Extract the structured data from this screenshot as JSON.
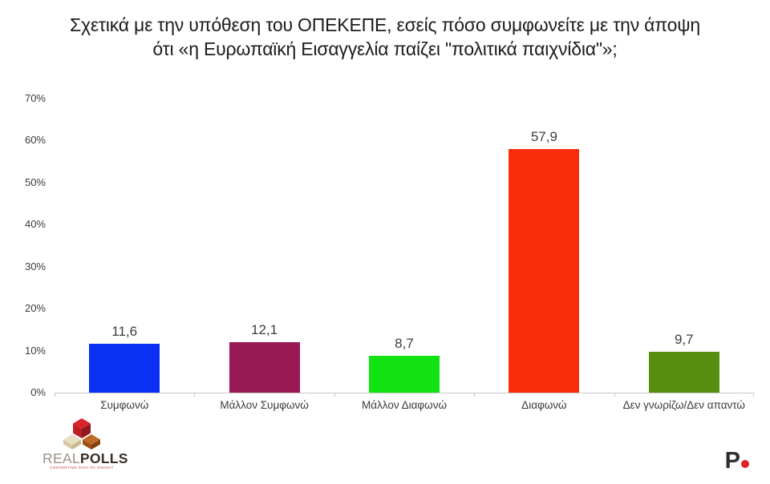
{
  "title": {
    "line1": "Σχετικά με την υπόθεση του ΟΠΕΚΕΠΕ, εσείς πόσο συμφωνείτε με την άποψη",
    "line2": "ότι «η Ευρωπαϊκή Εισαγγελία παίζει \"πολιτικά παιχνίδια\"»;"
  },
  "chart_data": {
    "type": "bar",
    "title": "Σχετικά με την υπόθεση του ΟΠΕΚΕΠΕ, εσείς πόσο συμφωνείτε με την άποψη ότι «η Ευρωπαϊκή Εισαγγελία παίζει \"πολιτικά παιχνίδια\"»;",
    "categories": [
      "Συμφωνώ",
      "Μάλλον Συμφωνώ",
      "Μάλλον Διαφωνώ",
      "Διαφωνώ",
      "Δεν γνωρίζω/Δεν απαντώ"
    ],
    "values": [
      11.6,
      12.1,
      8.7,
      57.9,
      9.7
    ],
    "value_labels": [
      "11,6",
      "12,1",
      "8,7",
      "57,9",
      "9,7"
    ],
    "bar_colors": [
      "#0a31f1",
      "#991955",
      "#12e212",
      "#fa2d0a",
      "#588e0d"
    ],
    "y_ticks": [
      "0%",
      "10%",
      "20%",
      "30%",
      "40%",
      "50%",
      "60%",
      "70%"
    ],
    "ylim": [
      0,
      70
    ],
    "grid": false,
    "legend": "none",
    "axis_line_color": "#c8c8c8"
  },
  "footer": {
    "realpolls": {
      "brand_light": "REAL",
      "brand_bold": "POLLS",
      "tagline": "CONVERTING DATA TO INSIGHT",
      "cube_red": "#d9232b",
      "cube_cream": "#e9dfc6",
      "cube_brown": "#c06a28"
    },
    "publisher": {
      "letter": "P",
      "letter_color": "#2e2e2e",
      "dot_color": "#e01e25"
    }
  }
}
